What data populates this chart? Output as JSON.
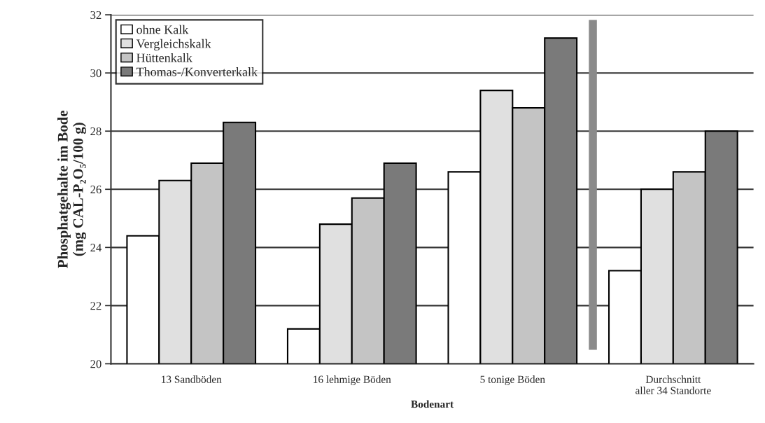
{
  "chart_data": {
    "type": "bar",
    "xlabel": "Bodenart",
    "ylabel": "Phosphatgehalte im Bode\n(mg CAL-P₂O₅/100 g)",
    "categories": [
      "13 Sandböden",
      "16 lehmige Böden",
      "5 tonige Böden",
      "Durchschnitt\naller 34 Standorte"
    ],
    "series": [
      {
        "name": "ohne Kalk",
        "color": "#ffffff",
        "values": [
          24.4,
          21.2,
          26.6,
          23.2
        ]
      },
      {
        "name": "Vergleichskalk",
        "color": "#e0e0e0",
        "values": [
          26.3,
          24.8,
          29.4,
          26.0
        ]
      },
      {
        "name": "Hüttenkalk",
        "color": "#c4c4c4",
        "values": [
          26.9,
          25.7,
          28.8,
          26.6
        ]
      },
      {
        "name": "Thomas-/Konverterkalk",
        "color": "#7a7a7a",
        "values": [
          28.3,
          26.9,
          31.2,
          28.0
        ]
      }
    ],
    "ylim": [
      20,
      32
    ],
    "yticks": [
      20,
      22,
      24,
      26,
      28,
      30,
      32
    ],
    "grid": "y",
    "legend": "top left"
  }
}
